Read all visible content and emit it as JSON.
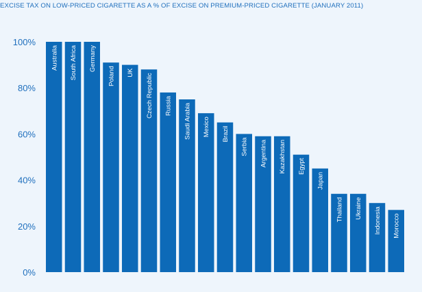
{
  "chart_data": {
    "type": "bar",
    "title": "EXCISE TAX ON LOW-PRICED CIGARETTE AS A % OF EXCISE ON PREMIUM-PRICED CIGARETTE (JANUARY 2011)",
    "xlabel": "",
    "ylabel": "",
    "categories": [
      "Australia",
      "South Africa",
      "Germany",
      "Poland",
      "UK",
      "Czech Republic",
      "Russia",
      "Saudi Arabia",
      "Mexico",
      "Brazil",
      "Serbia",
      "Argentina",
      "Kazakhstan",
      "Egypt",
      "Japan",
      "Thailand",
      "Ukraine",
      "Indonesia",
      "Morocco"
    ],
    "values": [
      100,
      100,
      100,
      91,
      90,
      88,
      78,
      75,
      69,
      65,
      60,
      59,
      59,
      51,
      45,
      34,
      34,
      30,
      27
    ],
    "ylim": [
      0,
      100
    ],
    "yticks": [
      0,
      20,
      40,
      60,
      80,
      100
    ],
    "ytick_labels": [
      "0%",
      "20%",
      "40%",
      "60%",
      "80%",
      "100%"
    ],
    "grid": false,
    "colors": {
      "bar": "#0d6ab8",
      "axis_text": "#1f6fbd",
      "title": "#1f6fbd",
      "background": "#eef5fc"
    }
  }
}
